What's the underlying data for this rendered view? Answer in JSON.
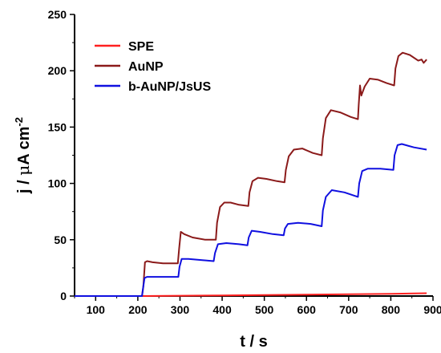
{
  "chart_data": {
    "type": "line",
    "xlabel": "t / s",
    "ylabel_parts": {
      "j": "j / ",
      "mu": "μ",
      "A": "A cm",
      "exp": "-2"
    },
    "xlim": [
      50,
      900
    ],
    "ylim": [
      0,
      250
    ],
    "xticks": [
      100,
      200,
      300,
      400,
      500,
      600,
      700,
      800,
      900
    ],
    "yticks": [
      0,
      50,
      100,
      150,
      200,
      250
    ],
    "tick_labels_x": [
      "100",
      "200",
      "300",
      "400",
      "500",
      "600",
      "700",
      "800",
      "900"
    ],
    "tick_labels_y": [
      "0",
      "50",
      "100",
      "150",
      "200",
      "250"
    ],
    "grid": false,
    "legend_position": "top-left",
    "series": [
      {
        "name": "SPE",
        "color": "#ff2020",
        "points": [
          [
            50,
            0
          ],
          [
            210,
            0
          ],
          [
            300,
            0.3
          ],
          [
            400,
            0.6
          ],
          [
            500,
            0.9
          ],
          [
            600,
            1.2
          ],
          [
            700,
            1.6
          ],
          [
            800,
            2.0
          ],
          [
            885,
            2.5
          ]
        ]
      },
      {
        "name": "AuNP",
        "color": "#8b1a1a",
        "points": [
          [
            50,
            0
          ],
          [
            210,
            0
          ],
          [
            213,
            8
          ],
          [
            217,
            30
          ],
          [
            222,
            31
          ],
          [
            235,
            30
          ],
          [
            260,
            29
          ],
          [
            295,
            29
          ],
          [
            298,
            42
          ],
          [
            302,
            57
          ],
          [
            310,
            55
          ],
          [
            330,
            52
          ],
          [
            360,
            50
          ],
          [
            385,
            50
          ],
          [
            388,
            65
          ],
          [
            395,
            79
          ],
          [
            405,
            83
          ],
          [
            420,
            83
          ],
          [
            440,
            81
          ],
          [
            462,
            80
          ],
          [
            465,
            92
          ],
          [
            472,
            102
          ],
          [
            485,
            105
          ],
          [
            505,
            104
          ],
          [
            530,
            102
          ],
          [
            548,
            101
          ],
          [
            551,
            112
          ],
          [
            558,
            124
          ],
          [
            570,
            130
          ],
          [
            590,
            131
          ],
          [
            615,
            127
          ],
          [
            636,
            125
          ],
          [
            639,
            140
          ],
          [
            646,
            158
          ],
          [
            658,
            165
          ],
          [
            680,
            163
          ],
          [
            705,
            159
          ],
          [
            722,
            157
          ],
          [
            724,
            170
          ],
          [
            727,
            187
          ],
          [
            730,
            178
          ],
          [
            738,
            186
          ],
          [
            750,
            193
          ],
          [
            770,
            192
          ],
          [
            790,
            189
          ],
          [
            808,
            187
          ],
          [
            811,
            202
          ],
          [
            818,
            213
          ],
          [
            828,
            216
          ],
          [
            845,
            214
          ],
          [
            865,
            209
          ],
          [
            873,
            210
          ],
          [
            878,
            207
          ],
          [
            885,
            210
          ]
        ]
      },
      {
        "name": "b-AuNP/JsUS",
        "color": "#1010e0",
        "points": [
          [
            50,
            0
          ],
          [
            210,
            0
          ],
          [
            212,
            6
          ],
          [
            216,
            16
          ],
          [
            222,
            17
          ],
          [
            260,
            17
          ],
          [
            296,
            17
          ],
          [
            299,
            26
          ],
          [
            304,
            33
          ],
          [
            320,
            33
          ],
          [
            350,
            32
          ],
          [
            380,
            31
          ],
          [
            383,
            38
          ],
          [
            390,
            46
          ],
          [
            410,
            47
          ],
          [
            440,
            46
          ],
          [
            460,
            45
          ],
          [
            463,
            52
          ],
          [
            470,
            58
          ],
          [
            490,
            57
          ],
          [
            520,
            55
          ],
          [
            546,
            54
          ],
          [
            549,
            60
          ],
          [
            556,
            64
          ],
          [
            580,
            65
          ],
          [
            610,
            64
          ],
          [
            636,
            62
          ],
          [
            639,
            76
          ],
          [
            646,
            88
          ],
          [
            660,
            94
          ],
          [
            690,
            92
          ],
          [
            722,
            88
          ],
          [
            725,
            100
          ],
          [
            732,
            111
          ],
          [
            745,
            113
          ],
          [
            775,
            113
          ],
          [
            806,
            112
          ],
          [
            809,
            125
          ],
          [
            816,
            134
          ],
          [
            826,
            135
          ],
          [
            855,
            132
          ],
          [
            885,
            130
          ]
        ]
      }
    ]
  }
}
